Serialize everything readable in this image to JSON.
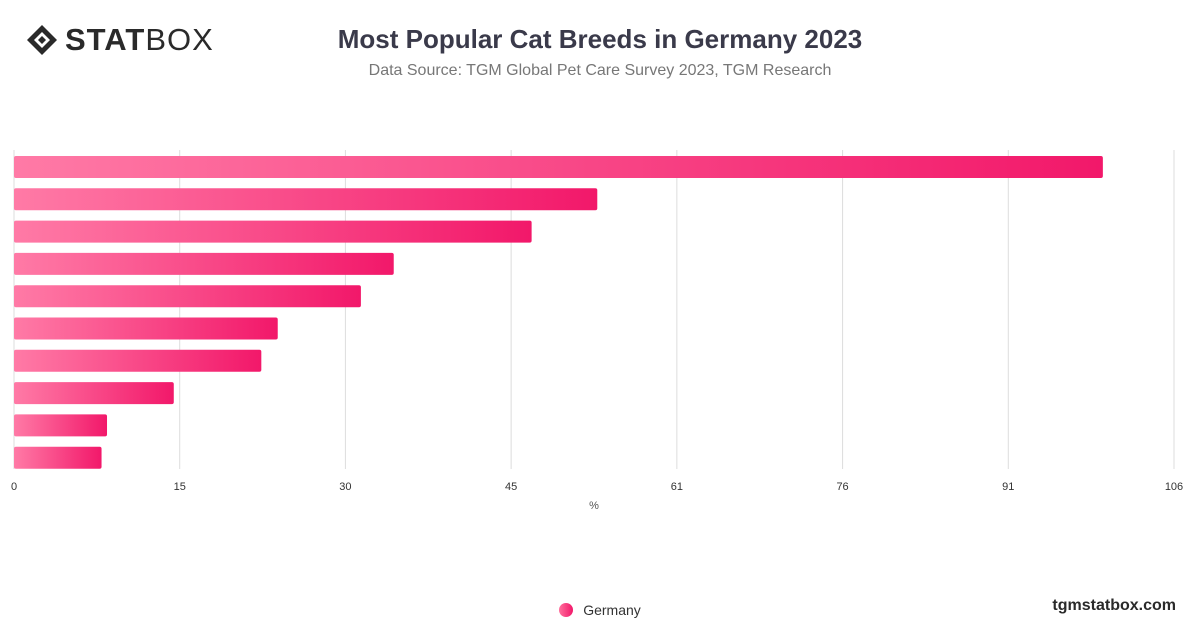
{
  "header": {
    "logo_bold": "STAT",
    "logo_light": "BOX",
    "title": "Most Popular Cat Breeds in Germany 2023",
    "subtitle": "Data Source: TGM Global Pet Care Survey 2023, TGM Research"
  },
  "footer": {
    "site": "tgmstatbox.com"
  },
  "colors": {
    "bar_start": "#ff7aa6",
    "bar_end": "#f2186a",
    "grid": "#dddddd",
    "axis_text": "#333333"
  },
  "chart_data": {
    "type": "bar",
    "orientation": "horizontal",
    "title": "Most Popular Cat Breeds in Germany 2023",
    "subtitle": "Data Source: TGM Global Pet Care Survey 2023, TGM Research",
    "xlabel": "%",
    "ylabel": "",
    "xlim": [
      0,
      106
    ],
    "x_ticks": [
      "0",
      "15",
      "30",
      "45",
      "61",
      "76",
      "91",
      "106"
    ],
    "grid": true,
    "legend_position": "bottom-center",
    "series": [
      {
        "name": "Germany",
        "values": [
          99.5,
          53.3,
          47.3,
          34.7,
          31.7,
          24.1,
          22.6,
          14.6,
          8.5,
          8.0
        ]
      }
    ]
  }
}
